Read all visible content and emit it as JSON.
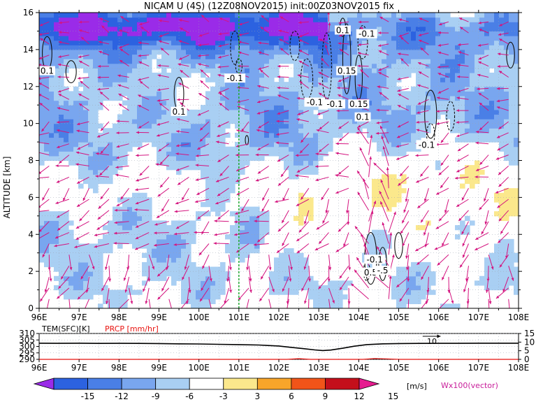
{
  "header": {
    "title": "NICAM U (4S) (12Z08NOV2015) init:00Z03NOV2015 fix"
  },
  "chart_data": [
    {
      "type": "heatmap",
      "title": "NICAM U (4S) (12Z08NOV2015) init:00Z03NOV2015 fix",
      "xlabel": "",
      "ylabel": "ALTITUDE [km]",
      "x_ticks": [
        "96E",
        "97E",
        "98E",
        "99E",
        "100E",
        "101E",
        "102E",
        "103E",
        "104E",
        "105E",
        "106E",
        "107E",
        "108E"
      ],
      "y_ticks": [
        "0",
        "2",
        "4",
        "6",
        "8",
        "10",
        "12",
        "14",
        "16"
      ],
      "xlim": [
        96,
        108
      ],
      "ylim": [
        0,
        16
      ],
      "marked_longitude": 101.0,
      "contour_labels": [
        {
          "text": "0.1",
          "lon": 99.5,
          "alt": 10.6
        },
        {
          "text": "0.1",
          "lon": 96.2,
          "alt": 12.8
        },
        {
          "text": "-0.1",
          "lon": 100.9,
          "alt": 12.4
        },
        {
          "text": "0.1",
          "lon": 103.6,
          "alt": 15.0
        },
        {
          "text": "-0.1",
          "lon": 104.2,
          "alt": 14.8
        },
        {
          "text": "0.15",
          "lon": 103.7,
          "alt": 12.8
        },
        {
          "text": "-0.1",
          "lon": 102.9,
          "alt": 11.1
        },
        {
          "text": "-0.1",
          "lon": 103.4,
          "alt": 11.0
        },
        {
          "text": "0.15",
          "lon": 104.0,
          "alt": 11.0
        },
        {
          "text": "0.1",
          "lon": 104.1,
          "alt": 10.3
        },
        {
          "text": "-0.1",
          "lon": 105.7,
          "alt": 8.8
        },
        {
          "text": "-0.1",
          "lon": 104.4,
          "alt": 2.6
        },
        {
          "text": "0.5",
          "lon": 104.3,
          "alt": 1.9
        },
        {
          "text": "-.5",
          "lon": 104.6,
          "alt": 2.0
        }
      ],
      "colorbar": {
        "levels": [
          "-15",
          "-12",
          "-9",
          "-6",
          "-3",
          "3",
          "6",
          "9",
          "12",
          "15"
        ],
        "unit": "[m/s]",
        "colors": [
          "#9a2be8",
          "#2c62e0",
          "#4a7fe6",
          "#79a6ef",
          "#a9cff3",
          "#ffffff",
          "#fbe88c",
          "#f8a52a",
          "#f15419",
          "#c40f1b",
          "#e61c8f"
        ]
      },
      "vector_key": "Wx100(vector)",
      "vector_color": "#d4147f"
    },
    {
      "type": "line",
      "x_ticks": [
        "96E",
        "97E",
        "98E",
        "99E",
        "100E",
        "101E",
        "102E",
        "103E",
        "104E",
        "105E",
        "106E",
        "107E",
        "108E"
      ],
      "xlim": [
        96,
        108
      ],
      "left_axis": {
        "label": "TEM(SFC)[K]",
        "ticks": [
          "290",
          "295",
          "300",
          "305",
          "310"
        ],
        "ylim": [
          290,
          310
        ]
      },
      "right_axis": {
        "label": "PRCP [mm/hr]",
        "ticks": [
          "0",
          "5",
          "10",
          "15"
        ],
        "ylim": [
          0,
          15
        ]
      },
      "annotation": "10",
      "series": [
        {
          "color": "#000000",
          "x": [
            96,
            96.5,
            97,
            97.5,
            98,
            98.5,
            99,
            99.5,
            100,
            100.5,
            101,
            101.5,
            102,
            102.3,
            102.6,
            102.9,
            103.1,
            103.3,
            103.6,
            103.9,
            104.2,
            104.6,
            105,
            105.5,
            106,
            106.5,
            107,
            107.5,
            108
          ],
          "y": [
            302.5,
            302.4,
            302.5,
            302.3,
            302.4,
            302.3,
            302.2,
            302.0,
            301.9,
            301.6,
            301.4,
            301.1,
            300.3,
            299.3,
            298.3,
            297.3,
            296.8,
            297.2,
            298.6,
            300.2,
            301.4,
            302.0,
            302.2,
            302.3,
            302.4,
            302.4,
            302.5,
            302.5,
            302.5
          ]
        },
        {
          "color": "#e8120e",
          "x": [
            96,
            101.8,
            102.2,
            102.5,
            102.8,
            103.3,
            104.1,
            104.4,
            104.7,
            105,
            108
          ],
          "y": [
            0,
            0,
            0,
            0.4,
            0,
            0,
            0,
            0.5,
            0.3,
            0,
            0
          ]
        }
      ]
    }
  ]
}
